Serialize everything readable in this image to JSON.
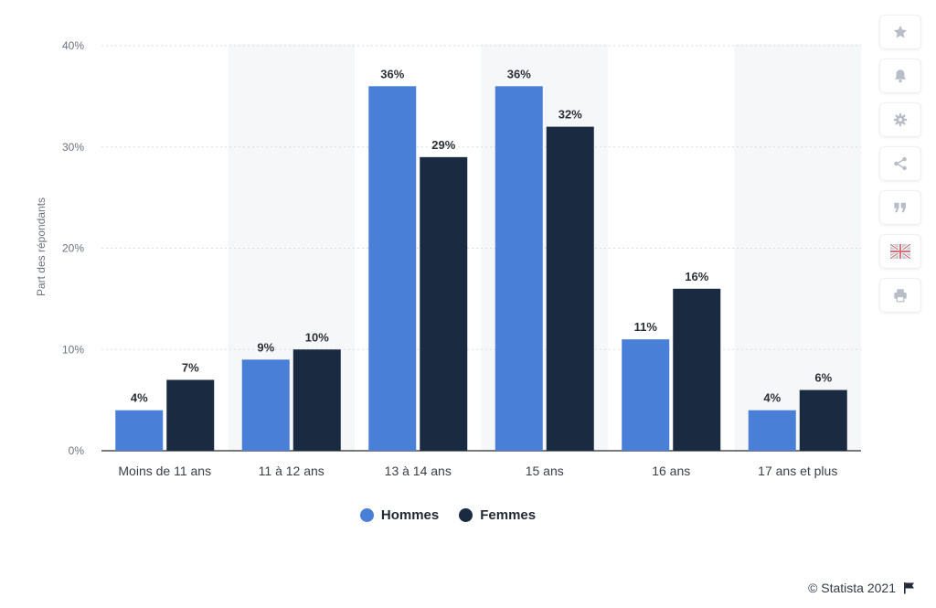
{
  "chart_data": {
    "type": "bar",
    "categories": [
      "Moins de 11 ans",
      "11 à 12 ans",
      "13 à 14 ans",
      "15 ans",
      "16 ans",
      "17 ans et plus"
    ],
    "series": [
      {
        "name": "Hommes",
        "values": [
          4,
          9,
          36,
          36,
          11,
          4
        ],
        "labels": [
          "4%",
          "9%",
          "36%",
          "36%",
          "11%",
          "4%"
        ],
        "color": "#4a7fd8"
      },
      {
        "name": "Femmes",
        "values": [
          7,
          10,
          29,
          32,
          16,
          6
        ],
        "labels": [
          "7%",
          "10%",
          "29%",
          "32%",
          "16%",
          "6%"
        ],
        "color": "#1a2a40"
      }
    ],
    "ylabel": "Part des répondants",
    "ylim": [
      0,
      40
    ],
    "yticks": [
      "0%",
      "10%",
      "20%",
      "30%",
      "40%"
    ],
    "grid": true,
    "legend_position": "bottom"
  },
  "legend": {
    "men": "Hommes",
    "women": "Femmes",
    "men_color": "#4a7fd8",
    "women_color": "#1a2a40"
  },
  "sidebar": {
    "icons": [
      "star-icon",
      "bell-icon",
      "gear-icon",
      "share-icon",
      "quote-icon",
      "flag-icon",
      "print-icon"
    ]
  },
  "footer": {
    "copyright": "© Statista 2021",
    "icon": "flag-icon"
  }
}
